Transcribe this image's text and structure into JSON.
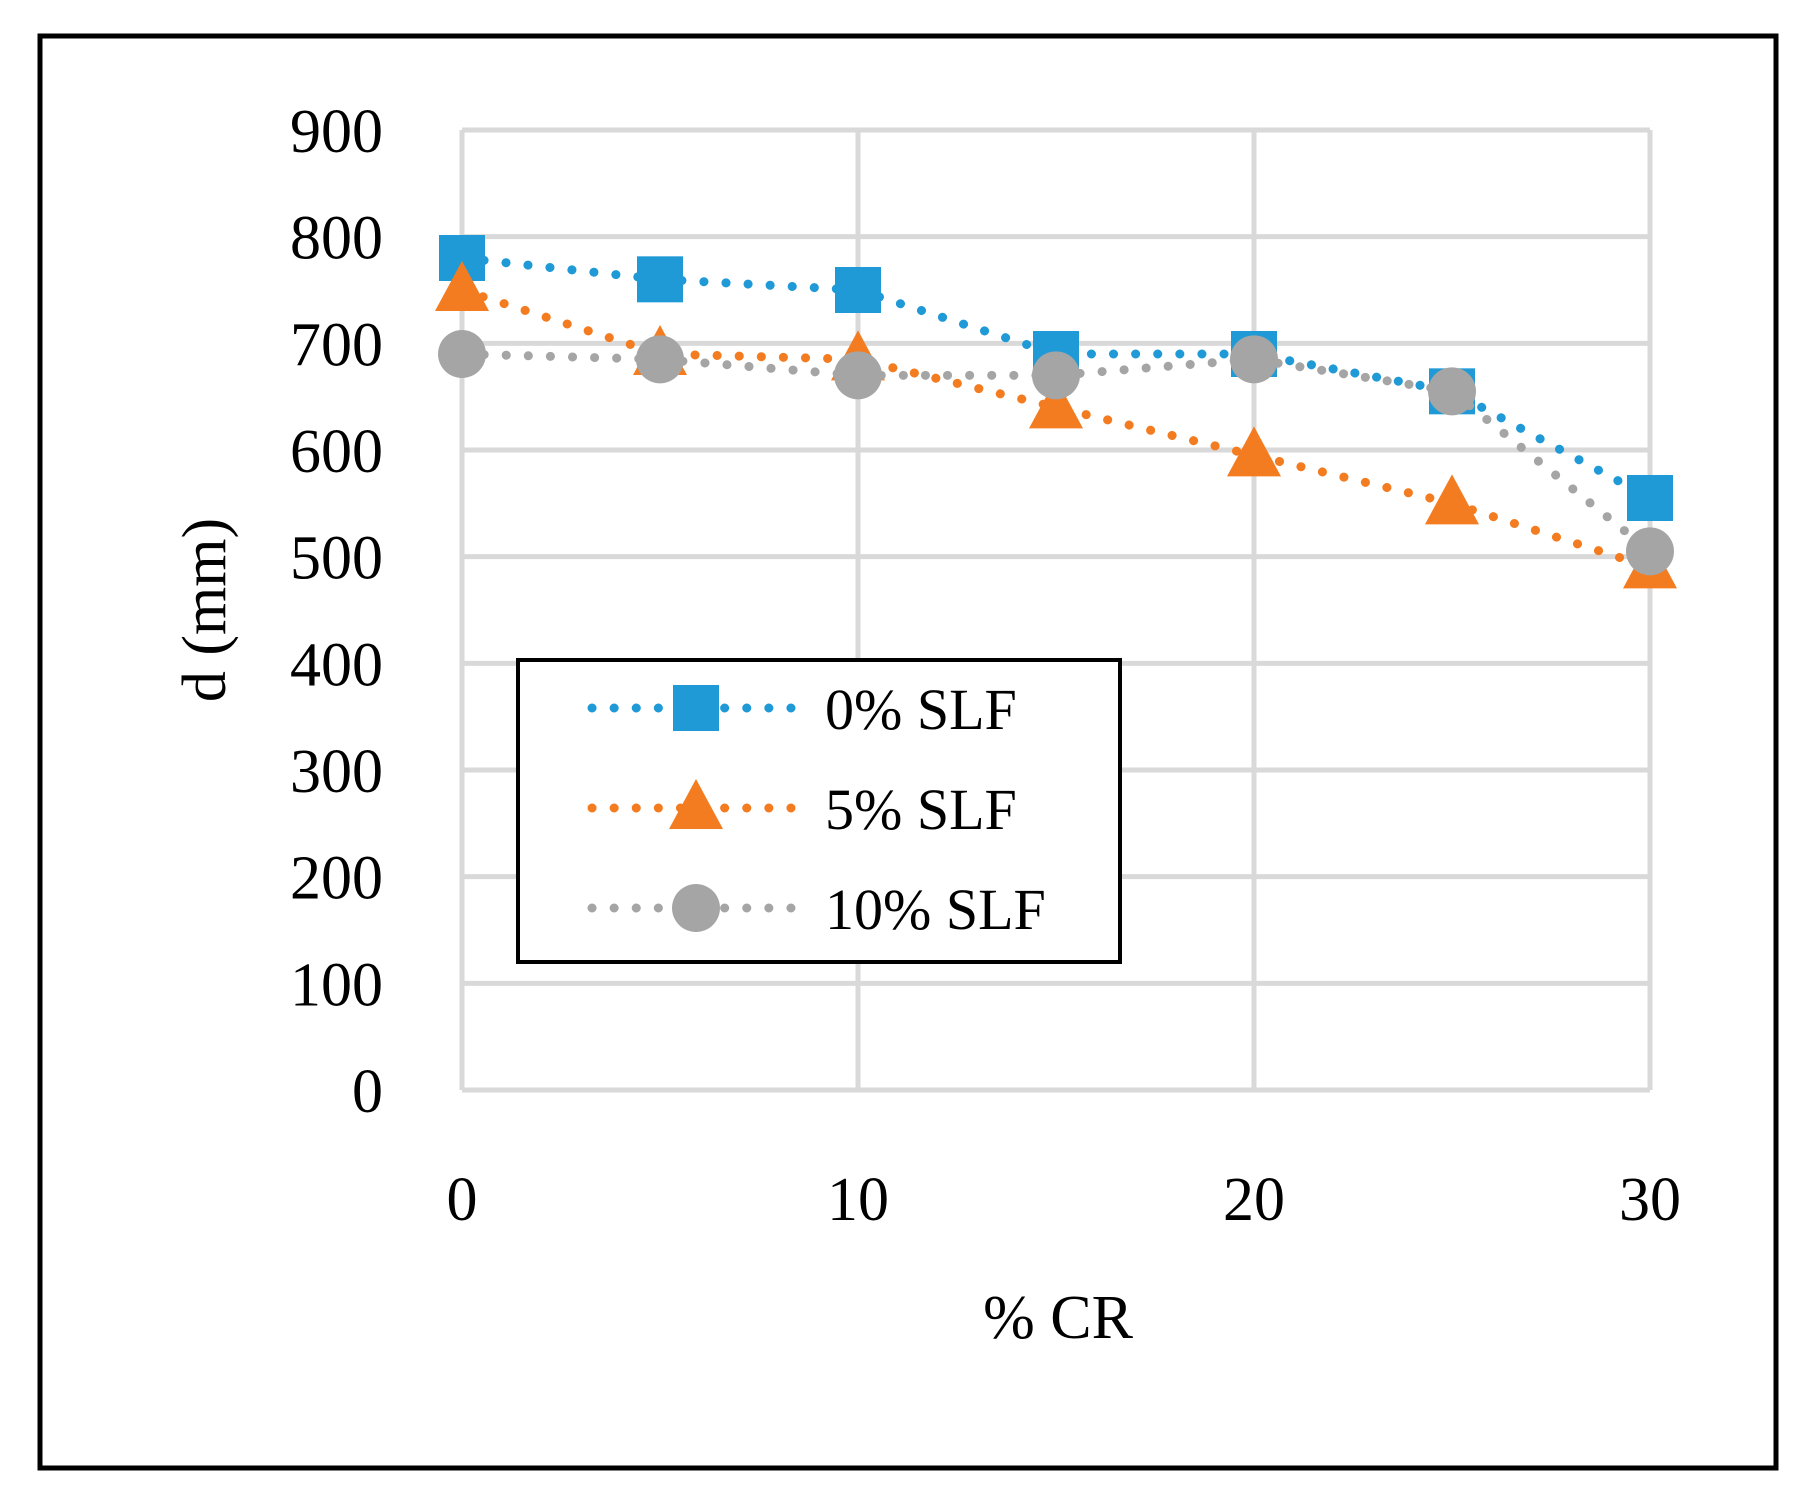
{
  "chart_data": {
    "type": "line",
    "title": "",
    "xlabel": "% CR",
    "ylabel": "d (mm)",
    "x": [
      0,
      5,
      10,
      15,
      20,
      25,
      30
    ],
    "xlim": [
      0,
      30
    ],
    "ylim": [
      0,
      900
    ],
    "xticks": [
      0,
      10,
      20,
      30
    ],
    "yticks": [
      0,
      100,
      200,
      300,
      400,
      500,
      600,
      700,
      800,
      900
    ],
    "grid": true,
    "legend_position": "center-left",
    "series": [
      {
        "name": "0% SLF",
        "marker": "square",
        "line_style": "dotted",
        "color": "#1f9ad6",
        "values": [
          780,
          760,
          750,
          690,
          690,
          655,
          555
        ]
      },
      {
        "name": "5% SLF",
        "marker": "triangle",
        "line_style": "dotted",
        "color": "#f47c20",
        "values": [
          750,
          690,
          685,
          640,
          595,
          550,
          490
        ]
      },
      {
        "name": "10% SLF",
        "marker": "circle",
        "line_style": "dotted",
        "color": "#a5a5a5",
        "values": [
          690,
          685,
          670,
          670,
          685,
          655,
          505
        ]
      }
    ]
  }
}
